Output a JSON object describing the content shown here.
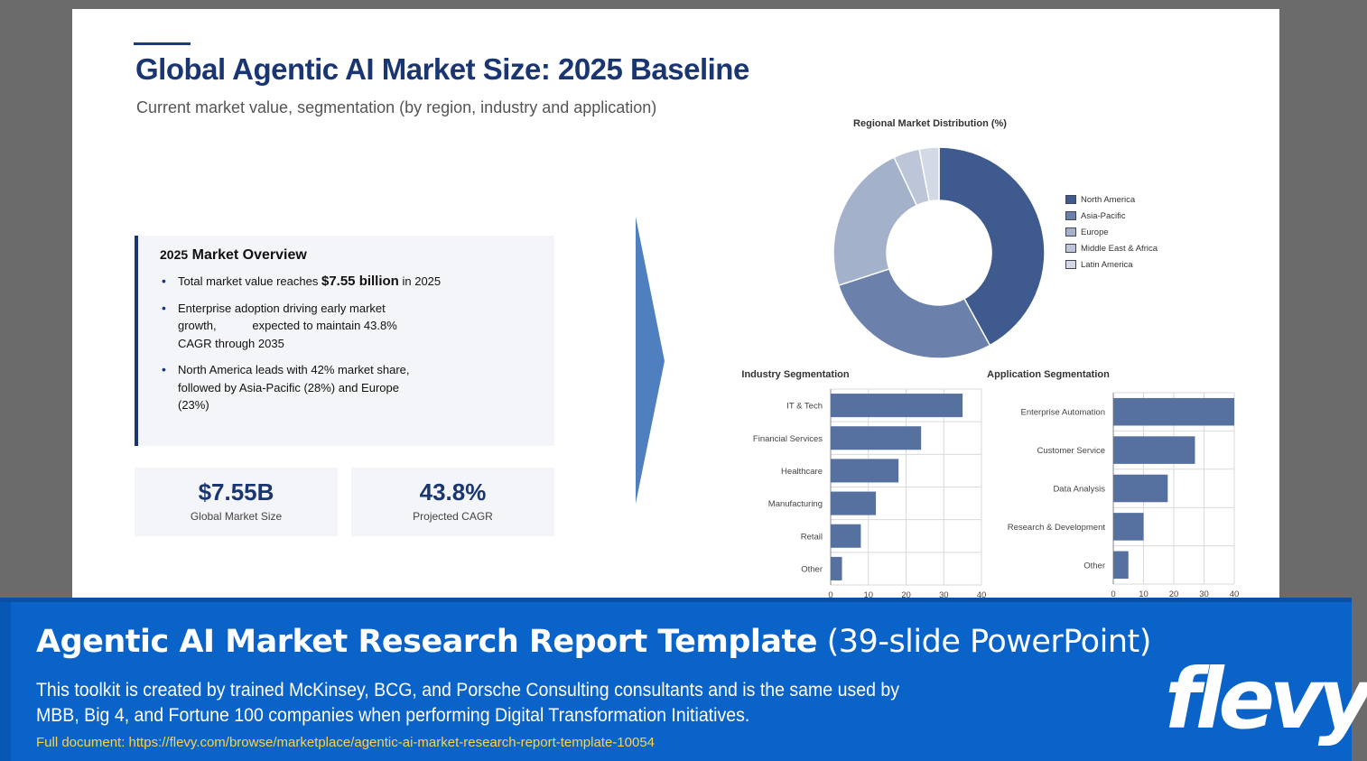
{
  "slide": {
    "title": "Global Agentic AI Market Size: 2025 Baseline",
    "subtitle": "Current market value, segmentation (by region, industry and application)",
    "overview": {
      "heading_year": "2025",
      "heading_text": "Market Overview",
      "bullet1_pre": "Total market value reaches",
      "bullet1_value": "$7.55 billion",
      "bullet1_post": "in 2025",
      "bullet2": "Enterprise adoption driving early market growth,           expected to maintain 43.8% CAGR through 2035",
      "bullet3": "North America leads with 42% market share, followed by Asia-Pacific (28%) and Europe (23%)"
    },
    "stats": [
      {
        "value": "$7.55B",
        "label": "Global Market Size"
      },
      {
        "value": "43.8%",
        "label": "Projected CAGR"
      }
    ]
  },
  "chart_data": [
    {
      "type": "pie",
      "title": "Regional Market Distribution (%)",
      "categories": [
        "North America",
        "Asia-Pacific",
        "Europe",
        "Middle East & Africa",
        "Latin America"
      ],
      "values": [
        42,
        28,
        23,
        4,
        3
      ],
      "colors": [
        "#3f5a8f",
        "#6b81ab",
        "#a3b1cb",
        "#bcc6d8",
        "#d3d9e5"
      ],
      "legend": "right",
      "donut": true
    },
    {
      "type": "bar",
      "orientation": "horizontal",
      "title": "Industry Segmentation",
      "categories": [
        "IT & Tech",
        "Financial Services",
        "Healthcare",
        "Manufacturing",
        "Retail",
        "Other"
      ],
      "values": [
        35,
        24,
        18,
        12,
        8,
        3
      ],
      "xlim": [
        0,
        40
      ],
      "xticks": [
        0,
        10,
        20,
        30,
        40
      ],
      "grid": true,
      "color": "#56709f"
    },
    {
      "type": "bar",
      "orientation": "horizontal",
      "title": "Application Segmentation",
      "categories": [
        "Enterprise Automation",
        "Customer Service",
        "Data Analysis",
        "Research & Development",
        "Other"
      ],
      "values": [
        40,
        27,
        18,
        10,
        5
      ],
      "xlim": [
        0,
        40
      ],
      "xticks": [
        0,
        10,
        20,
        30,
        40
      ],
      "grid": true,
      "color": "#56709f"
    }
  ],
  "banner": {
    "title_bold": "Agentic AI Market Research Report Template",
    "title_light": "(39-slide PowerPoint)",
    "description": "This toolkit is created by trained McKinsey, BCG, and Porsche Consulting consultants and is the same used by MBB, Big 4, and Fortune 100 companies when performing Digital Transformation Initiatives.",
    "link": "Full document: https://flevy.com/browse/marketplace/agentic-ai-market-research-report-template-10054",
    "logo": "flevy"
  },
  "colors": {
    "navy": "#1a3672",
    "banner_blue": "#0a63c9",
    "link_yellow": "#ffd24a",
    "arrow_blue": "#4f7fbf"
  }
}
